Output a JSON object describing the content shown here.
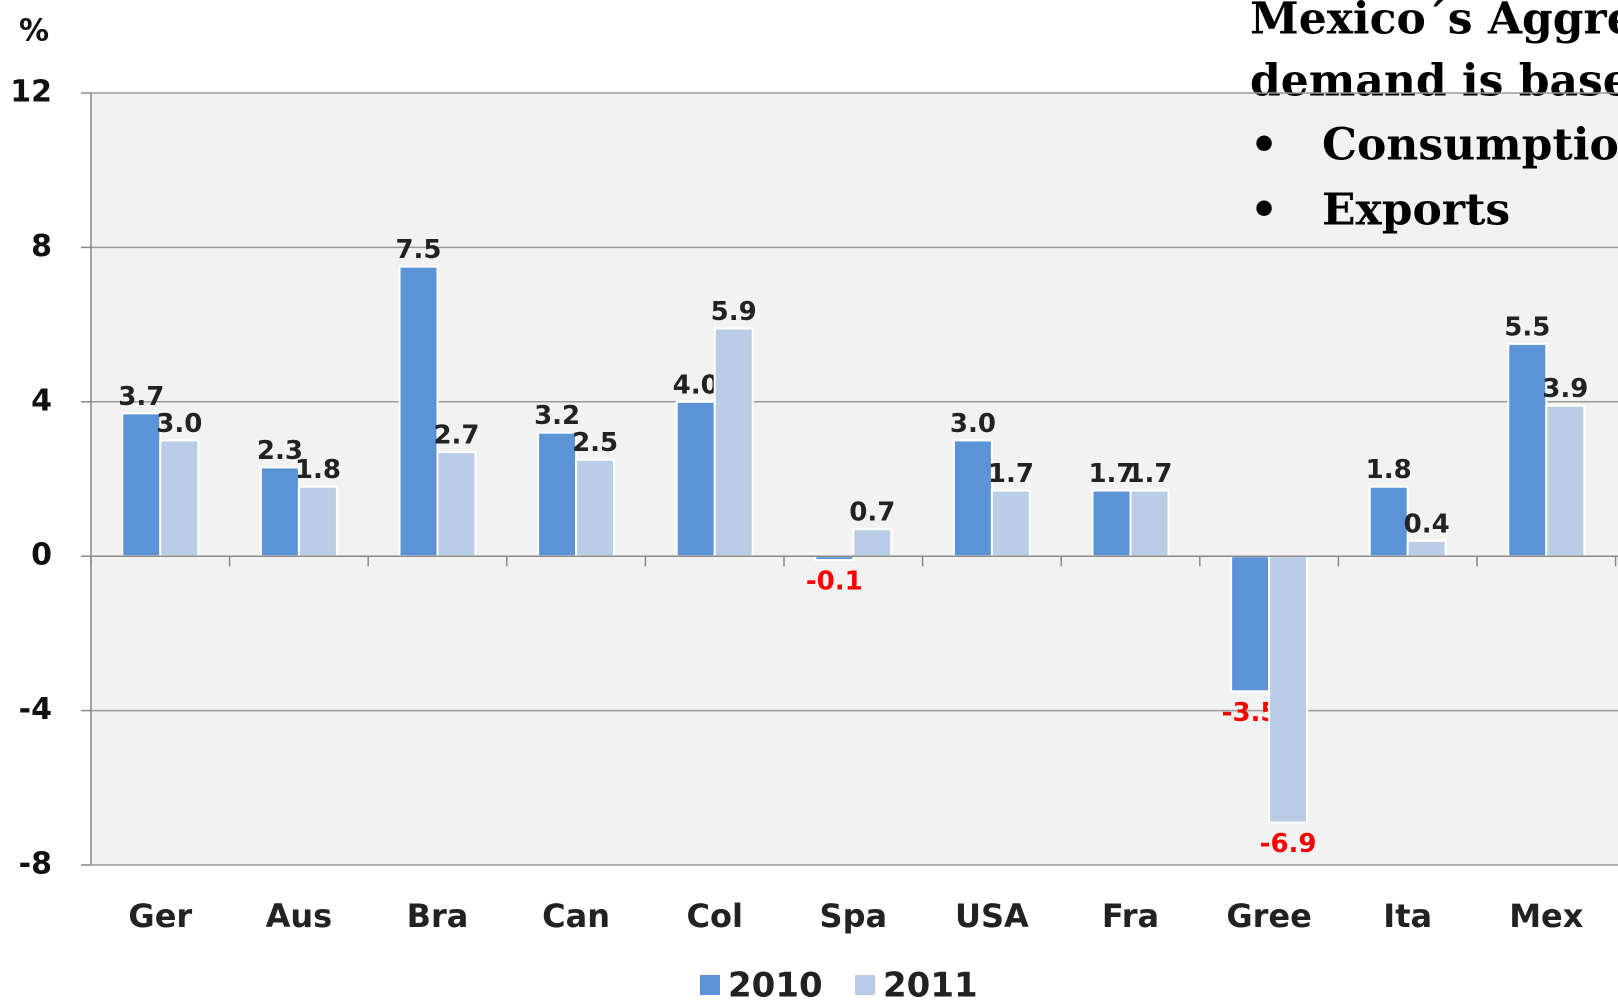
{
  "chart_data": {
    "type": "bar",
    "y_label": "%",
    "annotation": {
      "lines": [
        "Mexico´s Aggre",
        "demand is base"
      ],
      "bullets": [
        "Consumptio",
        "Exports"
      ]
    },
    "categories": [
      "Ger",
      "Aus",
      "Bra",
      "Can",
      "Col",
      "Spa",
      "USA",
      "Fra",
      "Gree",
      "Ita",
      "Mex"
    ],
    "series": [
      {
        "name": "2010",
        "color": "#5b93d6",
        "values": [
          3.7,
          2.3,
          7.5,
          3.2,
          4.0,
          -0.1,
          3.0,
          1.7,
          -3.5,
          1.8,
          5.5
        ],
        "value_labels": [
          "3.7",
          "2.3",
          "7.5",
          "3.2",
          "4.0",
          "-0.1",
          "3.0",
          "1.7",
          "-3.5",
          "1.8",
          "5.5"
        ]
      },
      {
        "name": "2011",
        "color": "#b9cde6",
        "values": [
          3.0,
          1.8,
          2.7,
          2.5,
          5.9,
          0.7,
          1.7,
          1.7,
          -6.9,
          0.4,
          3.9
        ],
        "value_labels": [
          "3.0",
          "1.8",
          "2.7",
          "2.5",
          "5.9",
          "0.7",
          "1.7",
          "1.7",
          "-6.9",
          "0.4",
          "3.9"
        ]
      }
    ],
    "ylim": [
      -8,
      12
    ],
    "yticks": [
      -8,
      -4,
      0,
      4,
      8,
      12
    ],
    "grid": true,
    "legend": "bottom"
  }
}
